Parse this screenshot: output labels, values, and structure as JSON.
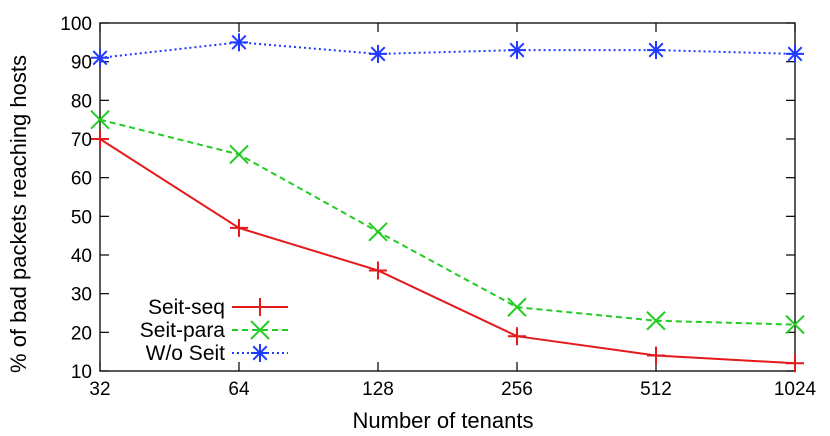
{
  "chart_data": {
    "type": "line",
    "xlabel": "Number of tenants",
    "ylabel": "% of bad packets reaching hosts",
    "categories": [
      "32",
      "64",
      "128",
      "256",
      "512",
      "1024"
    ],
    "x": [
      32,
      64,
      128,
      256,
      512,
      1024
    ],
    "x_scale": "log2",
    "ylim": [
      10,
      100
    ],
    "yticks": [
      10,
      20,
      30,
      40,
      50,
      60,
      70,
      80,
      90,
      100
    ],
    "grid": false,
    "legend_position": "bottom-left",
    "series": [
      {
        "name": "Seit-seq",
        "values": [
          70,
          47,
          36,
          19,
          14,
          12
        ],
        "color": "#e41a1c",
        "line": "solid",
        "marker": "plus"
      },
      {
        "name": "Seit-para",
        "values": [
          75,
          66,
          46,
          26.5,
          23,
          22
        ],
        "color": "#22cc22",
        "line": "dashed",
        "marker": "x"
      },
      {
        "name": "W/o Seit",
        "values": [
          91,
          95,
          92,
          93,
          93,
          92
        ],
        "color": "#1f3bff",
        "line": "dotted",
        "marker": "star"
      }
    ]
  }
}
